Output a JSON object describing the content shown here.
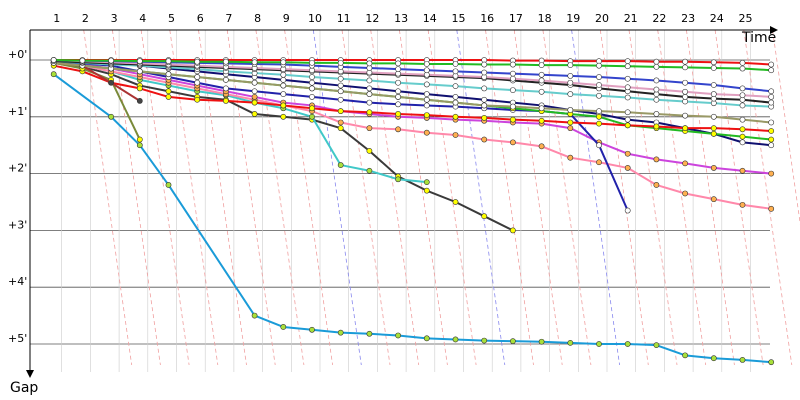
{
  "chart_data": {
    "type": "line",
    "xlabel": "Time",
    "ylabel": "Gap",
    "xlim": [
      0,
      27
    ],
    "ylim": [
      -0.5,
      5.6
    ],
    "x_ticks": [
      "1",
      "2",
      "3",
      "4",
      "5",
      "6",
      "7",
      "8",
      "9",
      "10",
      "11",
      "12",
      "13",
      "14",
      "15",
      "16",
      "17",
      "18",
      "19",
      "20",
      "21",
      "22",
      "23",
      "24",
      "25"
    ],
    "y_ticks": [
      {
        "value": 0,
        "label": "+0'"
      },
      {
        "value": 1,
        "label": "+1'"
      },
      {
        "value": 2,
        "label": "+2'"
      },
      {
        "value": 3,
        "label": "+3'"
      },
      {
        "value": 4,
        "label": "+4'"
      },
      {
        "value": 5,
        "label": "+5'"
      }
    ],
    "grid": true,
    "series": [
      {
        "color": "#1a9bd8",
        "marker": "#a8e03a",
        "x": [
          1,
          3,
          4,
          5,
          8,
          9,
          10,
          11,
          12,
          13,
          14,
          15,
          16,
          17,
          18,
          19,
          20,
          21,
          22,
          23,
          24,
          25,
          26
        ],
        "values": [
          0.25,
          1.0,
          1.5,
          2.2,
          4.5,
          4.7,
          4.75,
          4.8,
          4.82,
          4.85,
          4.9,
          4.92,
          4.94,
          4.95,
          4.96,
          4.98,
          5.0,
          5.0,
          5.02,
          5.2,
          5.25,
          5.28,
          5.32
        ]
      },
      {
        "color": "#3a3a3a",
        "marker": "#ffff00",
        "x": [
          1,
          2,
          3,
          4,
          5,
          6,
          7,
          8,
          9,
          10,
          11,
          12,
          13,
          14,
          15,
          16,
          17
        ],
        "values": [
          0.05,
          0.12,
          0.25,
          0.45,
          0.55,
          0.65,
          0.7,
          0.95,
          1.0,
          1.05,
          1.2,
          1.6,
          2.05,
          2.3,
          2.5,
          2.75,
          3.0
        ]
      },
      {
        "color": "#40c8c8",
        "marker": "#a8e03a",
        "x": [
          1,
          2,
          3,
          4,
          5,
          6,
          7,
          8,
          9,
          10,
          11,
          12,
          13,
          14
        ],
        "values": [
          0.05,
          0.1,
          0.2,
          0.35,
          0.45,
          0.55,
          0.62,
          0.75,
          0.85,
          1.0,
          1.85,
          1.95,
          2.1,
          2.15
        ]
      },
      {
        "color": "#ff88aa",
        "marker": "#ffb050",
        "x": [
          1,
          2,
          3,
          4,
          5,
          6,
          7,
          8,
          9,
          10,
          11,
          12,
          13,
          14,
          15,
          16,
          17,
          18,
          19,
          20,
          21,
          22,
          23,
          24,
          25,
          26
        ],
        "values": [
          0.05,
          0.1,
          0.2,
          0.3,
          0.4,
          0.5,
          0.6,
          0.7,
          0.8,
          0.9,
          1.1,
          1.2,
          1.22,
          1.28,
          1.32,
          1.4,
          1.45,
          1.52,
          1.72,
          1.8,
          1.9,
          2.2,
          2.35,
          2.45,
          2.55,
          2.62
        ]
      },
      {
        "color": "#cc44dd",
        "marker": "#ffb050",
        "x": [
          1,
          2,
          3,
          4,
          5,
          6,
          7,
          8,
          9,
          10,
          11,
          12,
          13,
          14,
          15,
          16,
          17,
          18,
          19,
          20,
          21,
          22,
          23,
          24,
          25,
          26
        ],
        "values": [
          0.05,
          0.08,
          0.15,
          0.25,
          0.35,
          0.45,
          0.55,
          0.65,
          0.75,
          0.8,
          0.9,
          0.95,
          1.0,
          1.02,
          1.05,
          1.07,
          1.1,
          1.12,
          1.2,
          1.45,
          1.65,
          1.75,
          1.82,
          1.9,
          1.95,
          2.0
        ]
      },
      {
        "color": "#2222aa",
        "marker": "#ffffff",
        "x": [
          1,
          2,
          3,
          4,
          5,
          6,
          7,
          8,
          9,
          10,
          11,
          12,
          13,
          14,
          15,
          16,
          17,
          18,
          19,
          20,
          21
        ],
        "values": [
          0.05,
          0.06,
          0.1,
          0.2,
          0.3,
          0.4,
          0.5,
          0.55,
          0.6,
          0.65,
          0.7,
          0.75,
          0.78,
          0.8,
          0.82,
          0.85,
          0.88,
          0.9,
          0.95,
          1.5,
          2.65
        ]
      },
      {
        "color": "#101070",
        "marker": "#ffffff",
        "x": [
          1,
          2,
          3,
          4,
          5,
          6,
          7,
          8,
          9,
          10,
          11,
          12,
          13,
          14,
          15,
          16,
          17,
          18,
          19,
          20,
          21,
          22,
          23,
          24,
          25,
          26
        ],
        "values": [
          0.0,
          0.02,
          0.05,
          0.1,
          0.15,
          0.2,
          0.25,
          0.3,
          0.35,
          0.4,
          0.45,
          0.5,
          0.55,
          0.6,
          0.65,
          0.7,
          0.75,
          0.8,
          0.88,
          0.95,
          1.05,
          1.1,
          1.2,
          1.3,
          1.45,
          1.5
        ]
      },
      {
        "color": "#22bb22",
        "marker": "#ffff00",
        "x": [
          1,
          2,
          3,
          4,
          5,
          6,
          7,
          8,
          9,
          10,
          11,
          12,
          13,
          14,
          15,
          16,
          17,
          18,
          19,
          20,
          21,
          22,
          23,
          24,
          25,
          26
        ],
        "values": [
          0.05,
          0.1,
          0.15,
          0.2,
          0.25,
          0.3,
          0.35,
          0.4,
          0.45,
          0.5,
          0.55,
          0.6,
          0.65,
          0.7,
          0.75,
          0.8,
          0.85,
          0.9,
          0.95,
          1.0,
          1.15,
          1.2,
          1.25,
          1.3,
          1.35,
          1.4
        ]
      },
      {
        "color": "#ee1111",
        "marker": "#ffff00",
        "x": [
          1,
          2,
          3,
          4,
          5,
          6,
          7,
          8,
          9,
          10,
          11,
          12,
          13,
          14,
          15,
          16,
          17,
          18,
          19,
          20,
          21,
          22,
          23,
          24,
          25,
          26
        ],
        "values": [
          0.1,
          0.2,
          0.4,
          0.5,
          0.65,
          0.7,
          0.72,
          0.75,
          0.8,
          0.85,
          0.9,
          0.92,
          0.95,
          0.97,
          1.0,
          1.02,
          1.05,
          1.07,
          1.1,
          1.12,
          1.15,
          1.17,
          1.2,
          1.2,
          1.22,
          1.25
        ]
      },
      {
        "color": "#7a8a3a",
        "marker": "#ffff00",
        "x": [
          1,
          2,
          3,
          4
        ],
        "values": [
          0.05,
          0.15,
          0.35,
          1.4
        ]
      },
      {
        "color": "#aa3333",
        "marker": "#444444",
        "x": [
          1,
          2,
          3,
          4
        ],
        "values": [
          0.05,
          0.1,
          0.4,
          0.72
        ]
      },
      {
        "color": "#999966",
        "marker": "#ffffff",
        "x": [
          1,
          2,
          3,
          4,
          5,
          6,
          7,
          8,
          9,
          10,
          11,
          12,
          13,
          14,
          15,
          16,
          17,
          18,
          19,
          20,
          21,
          22,
          23,
          24,
          25,
          26
        ],
        "values": [
          0.05,
          0.1,
          0.15,
          0.2,
          0.25,
          0.3,
          0.35,
          0.4,
          0.45,
          0.5,
          0.55,
          0.6,
          0.65,
          0.7,
          0.75,
          0.8,
          0.82,
          0.85,
          0.88,
          0.9,
          0.92,
          0.95,
          0.98,
          1.0,
          1.05,
          1.1
        ]
      },
      {
        "color": "#66cccc",
        "marker": "#ffffff",
        "x": [
          1,
          2,
          3,
          4,
          5,
          6,
          7,
          8,
          9,
          10,
          11,
          12,
          13,
          14,
          15,
          16,
          17,
          18,
          19,
          20,
          21,
          22,
          23,
          24,
          25,
          26
        ],
        "values": [
          0.02,
          0.05,
          0.08,
          0.1,
          0.13,
          0.16,
          0.2,
          0.23,
          0.26,
          0.3,
          0.33,
          0.36,
          0.4,
          0.43,
          0.46,
          0.5,
          0.53,
          0.56,
          0.6,
          0.63,
          0.66,
          0.7,
          0.73,
          0.76,
          0.8,
          0.82
        ]
      },
      {
        "color": "#222222",
        "marker": "#ffffff",
        "x": [
          1,
          2,
          3,
          4,
          5,
          6,
          7,
          8,
          9,
          10,
          11,
          12,
          13,
          14,
          15,
          16,
          17,
          18,
          19,
          20,
          21,
          22,
          23,
          24,
          25,
          26
        ],
        "values": [
          0.02,
          0.04,
          0.06,
          0.08,
          0.1,
          0.12,
          0.14,
          0.16,
          0.18,
          0.2,
          0.22,
          0.24,
          0.26,
          0.28,
          0.3,
          0.32,
          0.36,
          0.4,
          0.44,
          0.5,
          0.55,
          0.6,
          0.65,
          0.68,
          0.7,
          0.75
        ]
      },
      {
        "color": "#e0a0c0",
        "marker": "#ffffff",
        "x": [
          1,
          2,
          3,
          4,
          5,
          6,
          7,
          8,
          9,
          10,
          11,
          12,
          13,
          14,
          15,
          16,
          17,
          18,
          19,
          20,
          21,
          22,
          23,
          24,
          25,
          26
        ],
        "values": [
          0.0,
          0.02,
          0.04,
          0.06,
          0.08,
          0.1,
          0.12,
          0.14,
          0.16,
          0.18,
          0.2,
          0.22,
          0.24,
          0.26,
          0.28,
          0.3,
          0.33,
          0.36,
          0.4,
          0.44,
          0.48,
          0.52,
          0.56,
          0.6,
          0.62,
          0.65
        ]
      },
      {
        "color": "#3344cc",
        "marker": "#ffffff",
        "x": [
          1,
          2,
          3,
          4,
          5,
          6,
          7,
          8,
          9,
          10,
          11,
          12,
          13,
          14,
          15,
          16,
          17,
          18,
          19,
          20,
          21,
          22,
          23,
          24,
          25,
          26
        ],
        "values": [
          0.0,
          0.01,
          0.02,
          0.03,
          0.04,
          0.05,
          0.06,
          0.07,
          0.08,
          0.1,
          0.12,
          0.14,
          0.16,
          0.18,
          0.2,
          0.22,
          0.24,
          0.26,
          0.28,
          0.3,
          0.33,
          0.36,
          0.4,
          0.44,
          0.5,
          0.55
        ]
      },
      {
        "color": "#ee1111",
        "marker": "#ffffff",
        "x": [
          1,
          2,
          3,
          4,
          5,
          6,
          7,
          8,
          9,
          10,
          11,
          12,
          13,
          14,
          15,
          16,
          17,
          18,
          19,
          20,
          21,
          22,
          23,
          24,
          25,
          26
        ],
        "values": [
          0.0,
          0.0,
          0.0,
          0.0,
          0.0,
          0.0,
          0.0,
          0.0,
          0.0,
          0.0,
          0.0,
          0.0,
          0.0,
          0.0,
          0.0,
          0.0,
          0.01,
          0.01,
          0.02,
          0.02,
          0.02,
          0.03,
          0.03,
          0.04,
          0.05,
          0.08
        ]
      },
      {
        "color": "#22bb22",
        "marker": "#ffffff",
        "x": [
          1,
          2,
          3,
          4,
          5,
          6,
          7,
          8,
          9,
          10,
          11,
          12,
          13,
          14,
          15,
          16,
          17,
          18,
          19,
          20,
          21,
          22,
          23,
          24,
          25,
          26
        ],
        "values": [
          0.0,
          0.01,
          0.01,
          0.02,
          0.02,
          0.03,
          0.03,
          0.04,
          0.04,
          0.05,
          0.05,
          0.06,
          0.06,
          0.07,
          0.07,
          0.08,
          0.08,
          0.09,
          0.09,
          0.1,
          0.11,
          0.12,
          0.13,
          0.14,
          0.15,
          0.18
        ]
      }
    ]
  }
}
